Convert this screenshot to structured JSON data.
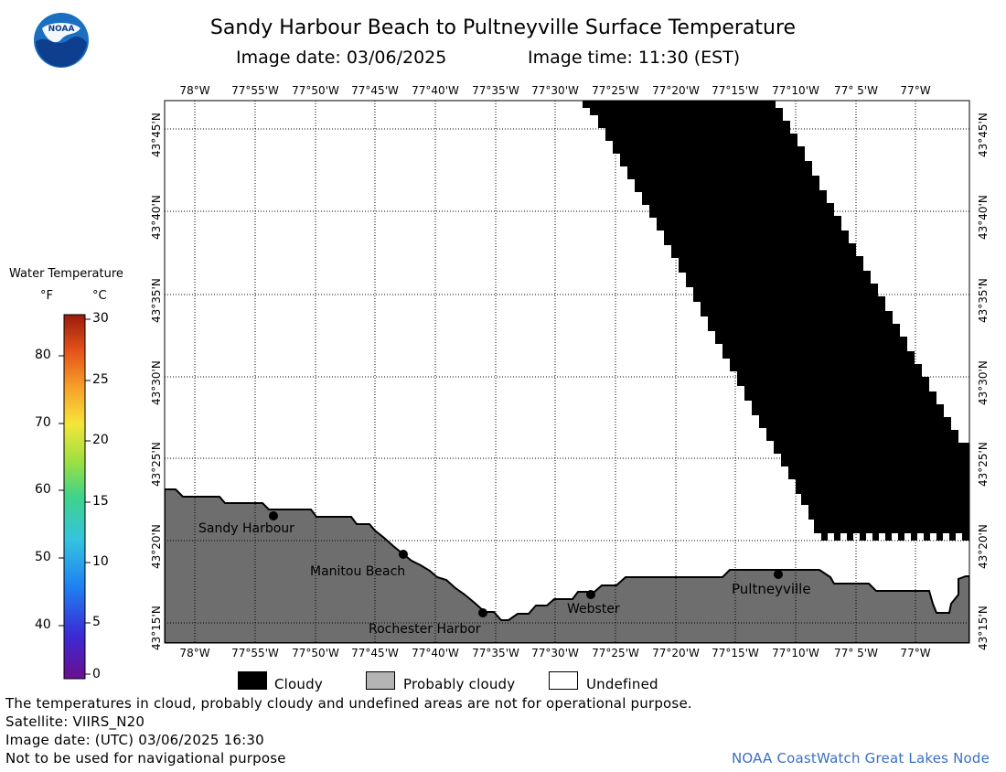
{
  "header": {
    "title": "Sandy Harbour Beach to Pultneyville Surface Temperature",
    "image_date": "Image date: 03/06/2025",
    "image_time": "Image time: 11:30 (EST)"
  },
  "logo": {
    "text": "NOAA"
  },
  "map": {
    "lon_labels": [
      "78°W",
      "77°55'W",
      "77°50'W",
      "77°45'W",
      "77°40'W",
      "77°35'W",
      "77°30'W",
      "77°25'W",
      "77°20'W",
      "77°15'W",
      "77°10'W",
      "77° 5'W",
      "77°W"
    ],
    "lat_labels": [
      "43°45'N",
      "43°40'N",
      "43°35'N",
      "43°30'N",
      "43°25'N",
      "43°20'N",
      "43°15'N"
    ],
    "places": [
      "Sandy Harbour",
      "Manitou Beach",
      "Rochester Harbor",
      "Webster",
      "Pultneyville"
    ],
    "colors": {
      "land": "#6e6e6e",
      "cloud": "#000000",
      "water": "#ffffff",
      "grid": "#000000"
    }
  },
  "colorbar": {
    "title": "Water Temperature",
    "unit_f": "°F",
    "unit_c": "°C",
    "f_ticks": [
      "80",
      "70",
      "60",
      "50",
      "40"
    ],
    "c_ticks": [
      "30",
      "25",
      "20",
      "15",
      "10",
      "5",
      "0"
    ]
  },
  "legend": {
    "cloudy": "Cloudy",
    "probably_cloudy": "Probably cloudy",
    "undefined": "Undefined",
    "colors": {
      "cloudy": "#000000",
      "probably_cloudy": "#b4b4b4",
      "undefined": "#ffffff"
    }
  },
  "footer": {
    "line1": "The temperatures in cloud, probably cloudy and undefined areas are not for operational purpose.",
    "line2": "Satellite: VIIRS_N20",
    "line3": "Image date: (UTC) 03/06/2025  16:30",
    "line4": "Not to be used for navigational purpose",
    "credit": "NOAA CoastWatch Great Lakes Node"
  }
}
